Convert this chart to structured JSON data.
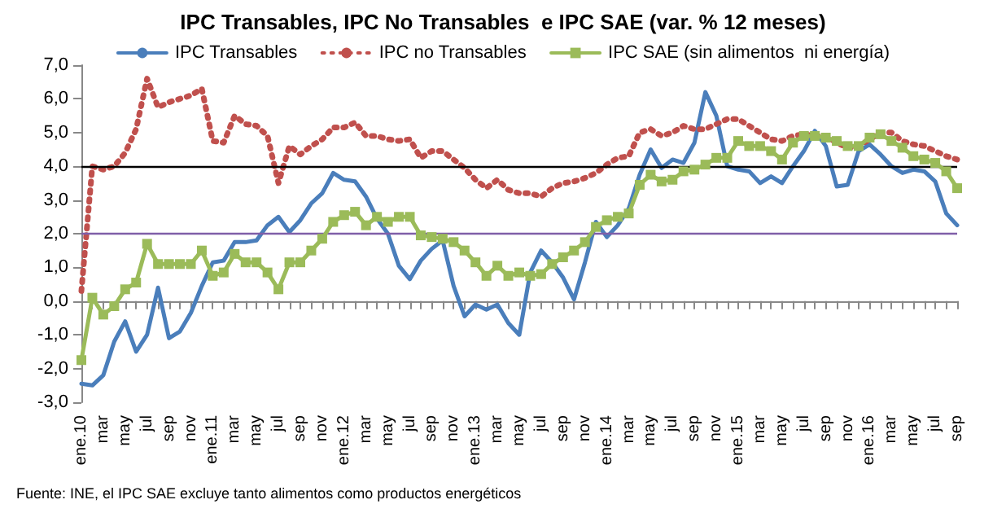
{
  "chart_data": {
    "type": "line",
    "title": "IPC Transables, IPC No Transables  e IPC SAE (var. % 12 meses)",
    "categories": [
      "ene.10",
      null,
      "mar",
      null,
      "may",
      null,
      "jul",
      null,
      "sep",
      null,
      "nov",
      null,
      "ene.11",
      null,
      "mar",
      null,
      "may",
      null,
      "jul",
      null,
      "sep",
      null,
      "nov",
      null,
      "ene.12",
      null,
      "mar",
      null,
      "may",
      null,
      "jul",
      null,
      "sep",
      null,
      "nov",
      null,
      "ene.13",
      null,
      "mar",
      null,
      "may",
      null,
      "jul",
      null,
      "sep",
      null,
      "nov",
      null,
      "ene.14",
      null,
      "mar",
      null,
      "may",
      null,
      "jul",
      null,
      "sep",
      null,
      "nov",
      null,
      "ene.15",
      null,
      "mar",
      null,
      "may",
      null,
      "jul",
      null,
      "sep",
      null,
      "nov",
      null,
      "ene.16",
      null,
      "mar",
      null,
      "may",
      null,
      "jul",
      null,
      "sep"
    ],
    "series": [
      {
        "name": "IPC Transables",
        "color": "#4a7ebb",
        "marker": "none",
        "line_style": "solid",
        "values": [
          -2.45,
          -2.5,
          -2.2,
          -1.2,
          -0.6,
          -1.5,
          -1.0,
          0.4,
          -1.1,
          -0.9,
          -0.35,
          0.45,
          1.15,
          1.2,
          1.75,
          1.75,
          1.8,
          2.25,
          2.5,
          2.05,
          2.4,
          2.9,
          3.2,
          3.8,
          3.6,
          3.55,
          3.1,
          2.45,
          2.0,
          1.05,
          0.65,
          1.2,
          1.55,
          1.8,
          0.45,
          -0.45,
          -0.1,
          -0.25,
          -0.1,
          -0.65,
          -1.0,
          0.85,
          1.5,
          1.15,
          0.7,
          0.05,
          1.15,
          2.35,
          1.9,
          2.25,
          2.75,
          3.75,
          4.5,
          3.95,
          4.2,
          4.1,
          4.7,
          6.2,
          5.5,
          4.0,
          3.9,
          3.85,
          3.5,
          3.7,
          3.5,
          4.0,
          4.45,
          5.05,
          4.6,
          3.4,
          3.45,
          4.45,
          4.65,
          4.35,
          4.0,
          3.8,
          3.9,
          3.85,
          3.55,
          2.6,
          2.25
        ]
      },
      {
        "name": "IPC no Transables",
        "color": "#c0504d",
        "marker": "none",
        "line_style": "dotted",
        "values": [
          0.3,
          4.0,
          3.9,
          4.0,
          4.4,
          5.1,
          6.6,
          5.75,
          5.9,
          6.0,
          6.1,
          6.3,
          4.75,
          4.7,
          5.5,
          5.25,
          5.2,
          4.9,
          3.5,
          4.6,
          4.35,
          4.6,
          4.8,
          5.15,
          5.15,
          5.3,
          4.9,
          4.9,
          4.8,
          4.75,
          4.8,
          4.25,
          4.45,
          4.45,
          4.2,
          3.95,
          3.6,
          3.35,
          3.6,
          3.3,
          3.2,
          3.2,
          3.1,
          3.35,
          3.5,
          3.55,
          3.65,
          3.8,
          4.05,
          4.25,
          4.3,
          5.0,
          5.1,
          4.9,
          5.0,
          5.2,
          5.1,
          5.1,
          5.25,
          5.4,
          5.4,
          5.2,
          5.0,
          4.8,
          4.75,
          4.9,
          4.95,
          4.9,
          4.9,
          4.7,
          4.55,
          4.6,
          4.8,
          5.0,
          5.0,
          4.75,
          4.65,
          4.6,
          4.45,
          4.3,
          4.2
        ]
      },
      {
        "name": "IPC SAE (sin alimentos  ni energía)",
        "color": "#9bbb59",
        "marker": "square",
        "line_style": "solid",
        "values": [
          -1.75,
          0.1,
          -0.4,
          -0.15,
          0.35,
          0.55,
          1.7,
          1.1,
          1.1,
          1.1,
          1.1,
          1.5,
          0.75,
          0.85,
          1.4,
          1.15,
          1.15,
          0.85,
          0.35,
          1.15,
          1.15,
          1.5,
          1.85,
          2.35,
          2.55,
          2.65,
          2.25,
          2.5,
          2.35,
          2.5,
          2.5,
          1.95,
          1.9,
          1.85,
          1.75,
          1.5,
          1.15,
          0.75,
          1.05,
          0.75,
          0.85,
          0.75,
          0.8,
          1.1,
          1.3,
          1.5,
          1.75,
          2.2,
          2.4,
          2.5,
          2.6,
          3.45,
          3.75,
          3.55,
          3.6,
          3.85,
          3.9,
          4.05,
          4.25,
          4.25,
          4.75,
          4.6,
          4.6,
          4.45,
          4.2,
          4.7,
          4.9,
          4.9,
          4.85,
          4.75,
          4.6,
          4.6,
          4.85,
          4.95,
          4.75,
          4.55,
          4.3,
          4.2,
          4.1,
          3.85,
          3.35
        ]
      }
    ],
    "ylim": [
      -3,
      7
    ],
    "yticks": [
      {
        "value": -3,
        "label": "-3,0"
      },
      {
        "value": -2,
        "label": "-2,0"
      },
      {
        "value": -1,
        "label": "-1,0"
      },
      {
        "value": 0,
        "label": "0,0"
      },
      {
        "value": 1,
        "label": "1,0"
      },
      {
        "value": 2,
        "label": "2,0"
      },
      {
        "value": 3,
        "label": "3,0"
      },
      {
        "value": 4,
        "label": "4,0"
      },
      {
        "value": 5,
        "label": "5,0"
      },
      {
        "value": 6,
        "label": "6,0"
      },
      {
        "value": 7,
        "label": "7,0"
      }
    ],
    "ref_lines": [
      {
        "axis": "y",
        "value": 4,
        "label": null,
        "color": "#000000"
      },
      {
        "axis": "y",
        "value": 2,
        "label": null,
        "color": "#7f5fa8"
      }
    ],
    "grid": false,
    "legend": "top",
    "annotations": [
      "Fuente: INE, el IPC SAE excluye tanto alimentos como productos energéticos"
    ]
  }
}
